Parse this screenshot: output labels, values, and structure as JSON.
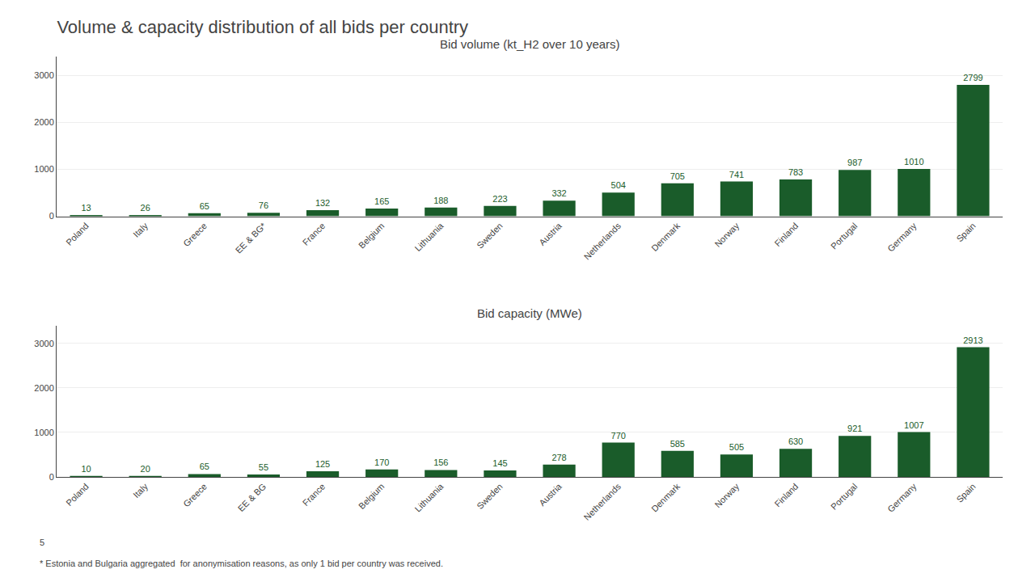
{
  "title": "Volume & capacity distribution of all bids per country",
  "chart_data": [
    {
      "type": "bar",
      "title": "Bid volume (kt_H2 over 10 years)",
      "categories": [
        "Poland",
        "Italy",
        "Greece",
        "EE & BG*",
        "France",
        "Belgium",
        "Lithuania",
        "Sweden",
        "Austria",
        "Netherlands",
        "Denmark",
        "Norway",
        "Finland",
        "Portugal",
        "Germany",
        "Spain"
      ],
      "values": [
        13,
        26,
        65,
        76,
        132,
        165,
        188,
        223,
        332,
        504,
        705,
        741,
        783,
        987,
        1010,
        2799
      ],
      "color": "#1a5c2a",
      "ylim": [
        0,
        3400
      ],
      "yticks": [
        0,
        1000,
        2000,
        3000
      ],
      "grid": true,
      "data_labels": true
    },
    {
      "type": "bar",
      "title": "Bid capacity (MWe)",
      "categories": [
        "Poland",
        "Italy",
        "Greece",
        "EE & BG",
        "France",
        "Belgium",
        "Lithuania",
        "Sweden",
        "Austria",
        "Netherlands",
        "Denmark",
        "Norway",
        "Finland",
        "Portugal",
        "Germany",
        "Spain"
      ],
      "values": [
        10,
        20,
        65,
        55,
        125,
        170,
        156,
        145,
        278,
        770,
        585,
        505,
        630,
        921,
        1007,
        2913
      ],
      "color": "#1a5c2a",
      "ylim": [
        0,
        3400
      ],
      "yticks": [
        0,
        1000,
        2000,
        3000
      ],
      "grid": true,
      "data_labels": true
    }
  ],
  "annotations": [
    "5",
    "* Estonia and Bulgaria aggregated  for anonymisation reasons, as only 1 bid per country was received."
  ]
}
